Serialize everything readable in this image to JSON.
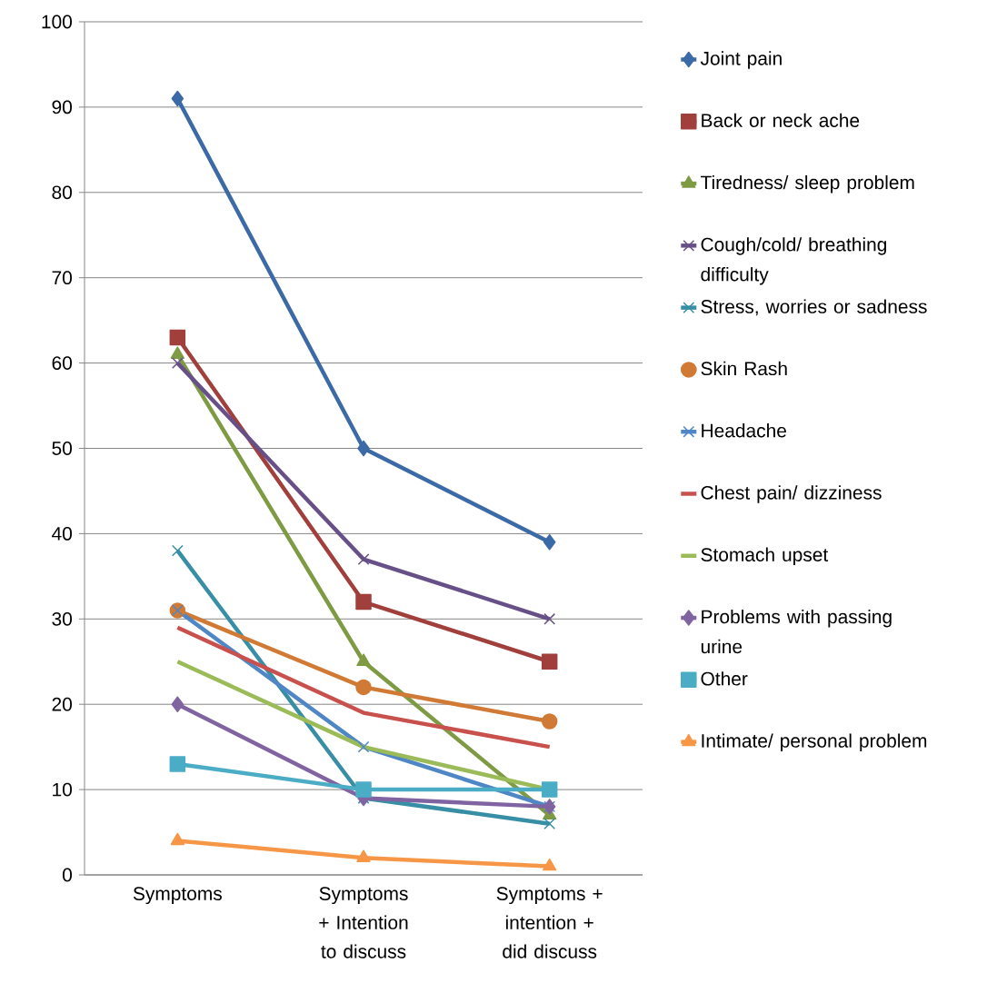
{
  "chart_data": {
    "type": "line",
    "categories": [
      "Symptoms",
      "Symptoms + Intention to discuss",
      "Symptoms + intention + did discuss"
    ],
    "ylim": [
      0,
      100
    ],
    "yticks": [
      0,
      10,
      20,
      30,
      40,
      50,
      60,
      70,
      80,
      90,
      100
    ],
    "grid": "y",
    "legend": "right",
    "line_style": "solid",
    "series": [
      {
        "name": "Joint pain",
        "color": "#3c6aa6",
        "marker": "diamond",
        "values": [
          91,
          50,
          39
        ]
      },
      {
        "name": "Back or neck ache",
        "color": "#a03f3c",
        "marker": "square",
        "values": [
          63,
          32,
          25
        ]
      },
      {
        "name": "Tiredness/ sleep problem",
        "color": "#7e9a43",
        "marker": "triangle",
        "values": [
          61,
          25,
          7
        ]
      },
      {
        "name": "Cough/cold/ breathing difficulty",
        "color": "#674f87",
        "marker": "cross",
        "values": [
          60,
          37,
          30
        ]
      },
      {
        "name": "Stress, worries or sadness",
        "color": "#378ea5",
        "marker": "cross",
        "values": [
          38,
          9,
          6
        ]
      },
      {
        "name": "Skin Rash",
        "color": "#d07a35",
        "marker": "circle",
        "values": [
          31,
          22,
          18
        ]
      },
      {
        "name": "Headache",
        "color": "#4f86c6",
        "marker": "cross",
        "values": [
          31,
          15,
          8
        ]
      },
      {
        "name": "Chest pain/ dizziness",
        "color": "#c8504d",
        "marker": "none",
        "values": [
          29,
          19,
          15
        ]
      },
      {
        "name": "Stomach upset",
        "color": "#9bbb59",
        "marker": "none",
        "values": [
          25,
          15,
          10
        ]
      },
      {
        "name": "Problems with passing urine",
        "color": "#8064a2",
        "marker": "diamond",
        "values": [
          20,
          9,
          8
        ]
      },
      {
        "name": "Other",
        "color": "#4bacc6",
        "marker": "square",
        "values": [
          13,
          10,
          10
        ]
      },
      {
        "name": "Intimate/ personal problem",
        "color": "#f79646",
        "marker": "triangle",
        "values": [
          4,
          2,
          1
        ]
      }
    ]
  }
}
